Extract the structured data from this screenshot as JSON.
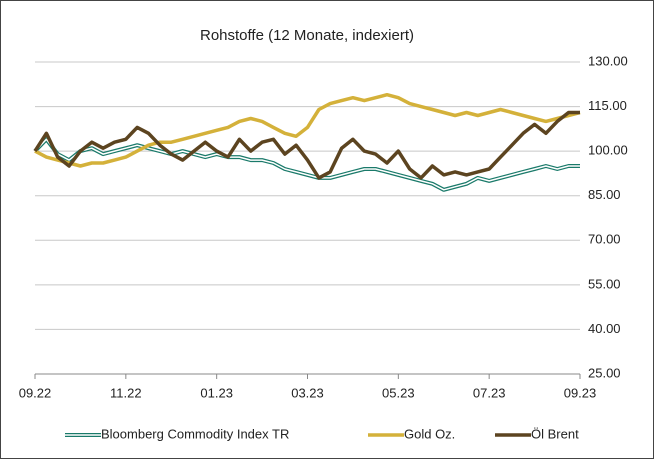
{
  "chart_data": {
    "type": "line",
    "title": "Rohstoffe (12 Monate, indexiert)",
    "categories": [
      "09.22",
      null,
      null,
      null,
      null,
      null,
      null,
      null,
      "11.22",
      null,
      null,
      null,
      null,
      null,
      null,
      null,
      "01.23",
      null,
      null,
      null,
      null,
      null,
      null,
      null,
      "03.23",
      null,
      null,
      null,
      null,
      null,
      null,
      null,
      "05.23",
      null,
      null,
      null,
      null,
      null,
      null,
      null,
      "07.23",
      null,
      null,
      null,
      null,
      null,
      null,
      null,
      "09.23"
    ],
    "series": [
      {
        "name": "Bloomberg Commodity Index TR",
        "color": "#1a7a6a",
        "values": [
          100,
          104,
          99,
          97,
          100,
          101,
          99,
          100,
          101,
          102,
          101,
          100,
          99,
          100,
          99,
          98,
          99,
          98,
          98,
          97,
          97,
          96,
          94,
          93,
          92,
          91,
          91,
          92,
          93,
          94,
          94,
          93,
          92,
          91,
          90,
          89,
          87,
          88,
          89,
          91,
          90,
          91,
          92,
          93,
          94,
          95,
          94,
          95,
          95
        ]
      },
      {
        "name": "Gold Oz.",
        "color": "#d4b13a",
        "values": [
          100,
          98,
          97,
          96,
          95,
          96,
          96,
          97,
          98,
          100,
          102,
          103,
          103,
          104,
          105,
          106,
          107,
          108,
          110,
          111,
          110,
          108,
          106,
          105,
          108,
          114,
          116,
          117,
          118,
          117,
          118,
          119,
          118,
          116,
          115,
          114,
          113,
          112,
          113,
          112,
          113,
          114,
          113,
          112,
          111,
          110,
          111,
          112,
          113
        ]
      },
      {
        "name": "Öl Brent",
        "color": "#5c4420",
        "values": [
          100,
          106,
          98,
          95,
          100,
          103,
          101,
          103,
          104,
          108,
          106,
          102,
          99,
          97,
          100,
          103,
          100,
          98,
          104,
          100,
          103,
          104,
          99,
          102,
          97,
          91,
          93,
          101,
          104,
          100,
          99,
          96,
          100,
          94,
          91,
          95,
          92,
          93,
          92,
          93,
          94,
          98,
          102,
          106,
          109,
          106,
          110,
          113,
          113
        ]
      }
    ],
    "ylim": [
      25,
      130
    ],
    "yticks": [
      {
        "value": 25,
        "label": "25.00"
      },
      {
        "value": 40,
        "label": "40.00"
      },
      {
        "value": 55,
        "label": "55.00"
      },
      {
        "value": 70,
        "label": "70.00"
      },
      {
        "value": 85,
        "label": "85.00"
      },
      {
        "value": 100,
        "label": "100.00"
      },
      {
        "value": 115,
        "label": "115.00"
      },
      {
        "value": 130,
        "label": "130.00"
      }
    ],
    "grid": true
  }
}
